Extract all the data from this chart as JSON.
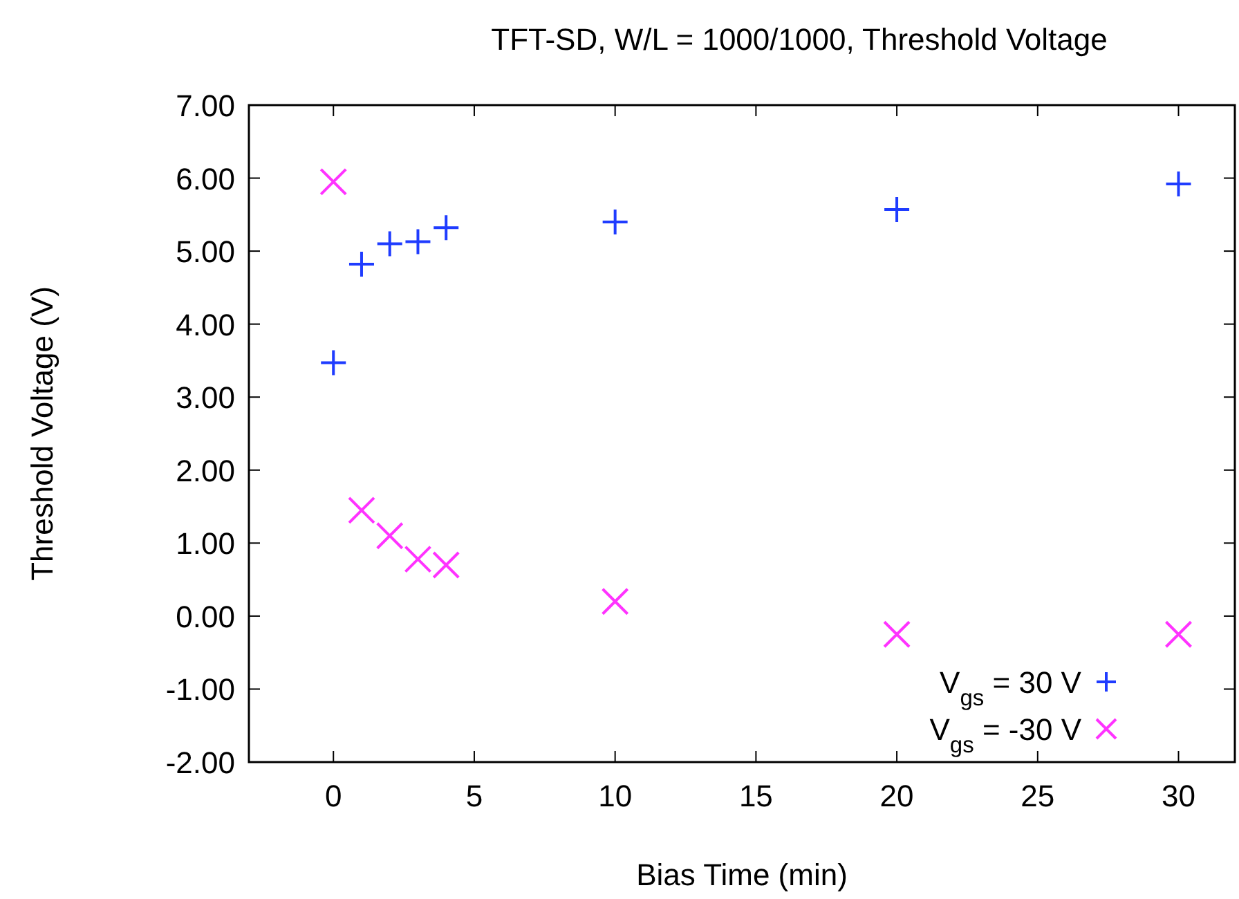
{
  "chart_data": {
    "type": "scatter",
    "title": "TFT-SD, W/L = 1000/1000, Threshold Voltage",
    "xlabel": "Bias Time (min)",
    "ylabel": "Threshold Voltage (V)",
    "x": [
      0,
      1,
      2,
      3,
      4,
      10,
      20,
      30
    ],
    "series": [
      {
        "name": "V$_{gs}$ = 30 V",
        "color": "#1f3cff",
        "marker": "plus",
        "values": [
          3.47,
          4.82,
          5.1,
          5.13,
          5.32,
          5.4,
          5.57,
          5.92
        ]
      },
      {
        "name": "V$_{gs}$ = -30 V",
        "color": "#ff33ff",
        "marker": "cross",
        "values": [
          5.95,
          1.45,
          1.1,
          0.78,
          0.7,
          0.2,
          -0.25,
          -0.25
        ]
      }
    ],
    "xlim": [
      -3,
      32
    ],
    "xticks": [
      0,
      5,
      10,
      15,
      20,
      25,
      30
    ],
    "ylim": [
      -2,
      7
    ],
    "yticks": [
      {
        "value": -2,
        "label": "-2.00"
      },
      {
        "value": -1,
        "label": "-1.00"
      },
      {
        "value": 0,
        "label": "0.00"
      },
      {
        "value": 1,
        "label": "1.00"
      },
      {
        "value": 2,
        "label": "2.00"
      },
      {
        "value": 3,
        "label": "3.00"
      },
      {
        "value": 4,
        "label": "4.00"
      },
      {
        "value": 5,
        "label": "5.00"
      },
      {
        "value": 6,
        "label": "6.00"
      },
      {
        "value": 7,
        "label": "7.00"
      }
    ],
    "grid": false,
    "legend": "bottom right"
  }
}
